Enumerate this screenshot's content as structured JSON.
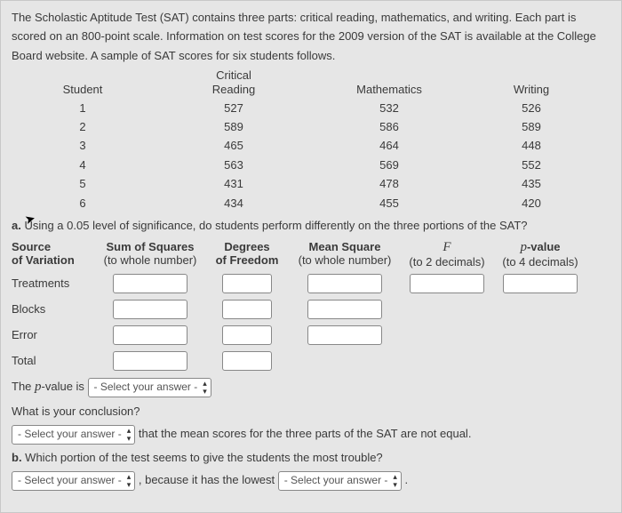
{
  "intro": {
    "p1a": "The Scholastic Aptitude Test (SAT) contains three parts: critical reading, mathematics, and writing. Each part is scored on an ",
    "points": "800",
    "p1b": "-point scale. Information on test scores for the ",
    "year": "2009",
    "p1c": " version of the SAT is available at the College Board website. A sample of SAT scores for six students follows."
  },
  "table": {
    "headers": {
      "student": "Student",
      "cr1": "Critical",
      "cr2": "Reading",
      "math": "Mathematics",
      "writing": "Writing"
    },
    "rows": [
      {
        "s": "1",
        "cr": "527",
        "m": "532",
        "w": "526"
      },
      {
        "s": "2",
        "cr": "589",
        "m": "586",
        "w": "589"
      },
      {
        "s": "3",
        "cr": "465",
        "m": "464",
        "w": "448"
      },
      {
        "s": "4",
        "cr": "563",
        "m": "569",
        "w": "552"
      },
      {
        "s": "5",
        "cr": "431",
        "m": "478",
        "w": "435"
      },
      {
        "s": "6",
        "cr": "434",
        "m": "455",
        "w": "420"
      }
    ]
  },
  "qa": {
    "a_label": "a.",
    "a_text1": " Using a ",
    "alpha": "0.05",
    "a_text2": " level of significance, do students perform differently on the three portions of the SAT?"
  },
  "anova": {
    "hdr": {
      "src1": "Source",
      "src2": "of Variation",
      "ss1": "Sum of Squares",
      "ss2": "(to whole number)",
      "df1": "Degrees",
      "df2": "of Freedom",
      "ms1": "Mean Square",
      "ms2": "(to whole number)",
      "f1": "F",
      "f2": "(to 2 decimals)",
      "p1": "p-value",
      "p2": "(to 4 decimals)"
    },
    "rows": {
      "treatments": "Treatments",
      "blocks": "Blocks",
      "error": "Error",
      "total": "Total"
    }
  },
  "followup": {
    "pval_pre": "The ",
    "pval_var": "p",
    "pval_post": "-value is ",
    "concl_q": "What is your conclusion?",
    "concl_tail": " that the mean scores for the three parts of the SAT are not equal.",
    "b_label": "b.",
    "b_q": " Which portion of the test seems to give the students the most trouble?",
    "b_mid": " , because it has the lowest ",
    "b_end": " .",
    "select_placeholder": "- Select your answer -"
  }
}
